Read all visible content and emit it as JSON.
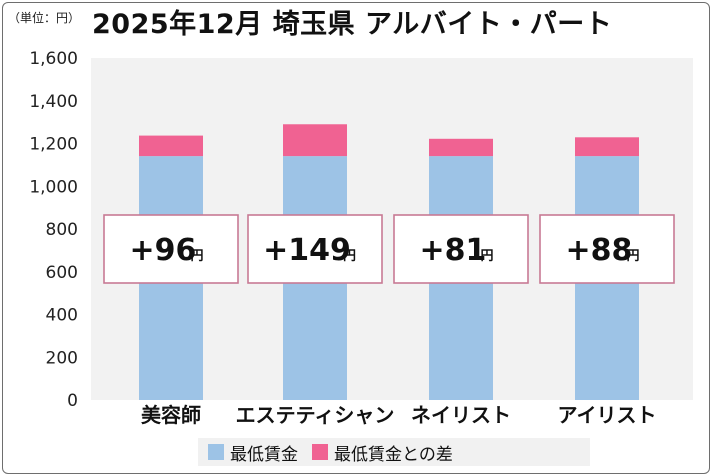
{
  "unit_label": "（単位：円）",
  "title": "2025年12月 埼玉県 アルバイト・パート",
  "colors": {
    "min_wage": "#9dc3e6",
    "difference": "#f06292",
    "label_box_border": "#c87a94",
    "plot_bg": "#f2f2f2"
  },
  "chart_data": {
    "type": "bar",
    "stacked": true,
    "title": "2025年12月 埼玉県 アルバイト・パート",
    "categories": [
      "美容師",
      "エステティシャン",
      "ネイリスト",
      "アイリスト"
    ],
    "series": [
      {
        "name": "最低賃金",
        "values": [
          1141,
          1141,
          1141,
          1141
        ]
      },
      {
        "name": "最低賃金との差",
        "values": [
          96,
          149,
          81,
          88
        ]
      }
    ],
    "data_labels": [
      "+96",
      "+149",
      "+81",
      "+88"
    ],
    "data_label_unit": "円",
    "ylim": [
      0,
      1600
    ],
    "yticks": [
      "0",
      "200",
      "400",
      "600",
      "800",
      "1,000",
      "1,200",
      "1,400",
      "1,600"
    ],
    "grid": false,
    "legend": "bottom"
  }
}
